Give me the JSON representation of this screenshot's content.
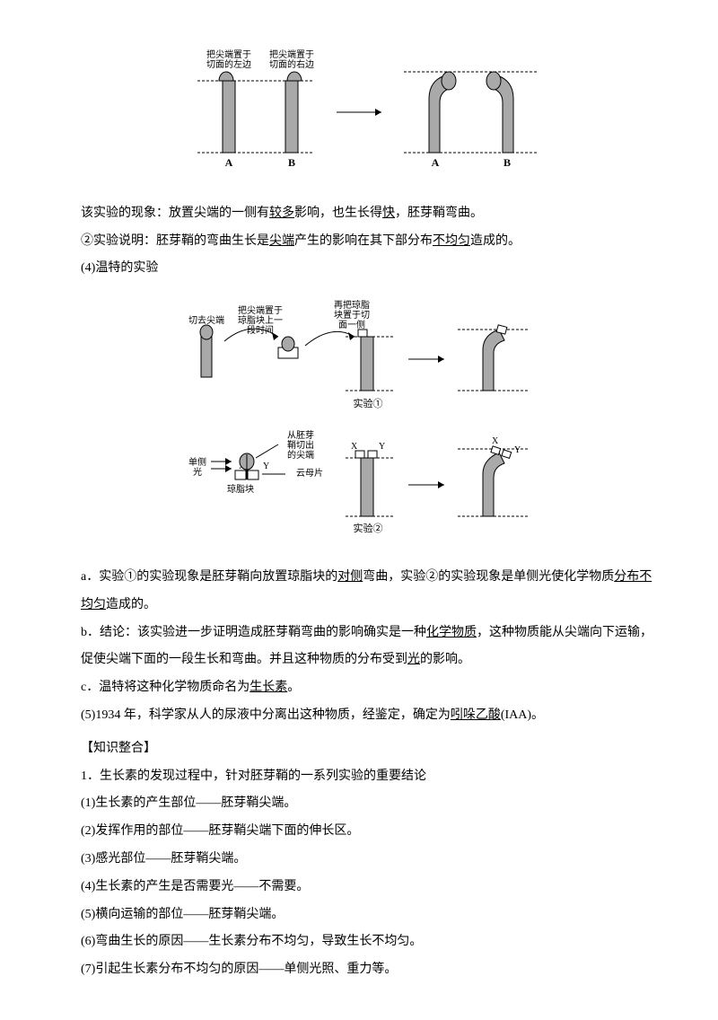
{
  "diagram1": {
    "label_left": "把尖端置于\n切面的左边",
    "label_right": "把尖端置于\n切面的右边",
    "A": "A",
    "B": "B",
    "colors": {
      "fill": "#a9a9a9",
      "stroke": "#000000",
      "bg": "#ffffff"
    }
  },
  "p1_a": "该实验的现象：放置尖端的一侧有",
  "p1_u1": "较多",
  "p1_b": "影响，也生长得",
  "p1_u2": "快",
  "p1_c": "，胚芽鞘弯曲。",
  "p2_a": "②实验说明：胚芽鞘的弯曲生长是",
  "p2_u1": "尖端",
  "p2_b": "产生的影响在其下部分布",
  "p2_u2": "不均匀",
  "p2_c": "造成的。",
  "p3": "(4)温特的实验",
  "diagram2": {
    "t_cut": "切去尖端",
    "t_place": "把尖端置于\n琼脂块上一\n段时间",
    "t_reput": "再把琼脂\n块置于切\n面一侧",
    "exp1": "实验①",
    "t_single": "单侧\n光",
    "t_agar": "琼脂块",
    "t_mica": "云母片",
    "t_from": "从胚芽\n鞘切出\n的尖端",
    "X": "X",
    "Y": "Y",
    "exp2": "实验②"
  },
  "p4_a": "a．实验①的实验现象是胚芽鞘向放置琼脂块的",
  "p4_u1": "对侧",
  "p4_b": "弯曲，实验②的实验现象是单侧光使化学物质",
  "p4_u2": "分布不均匀",
  "p4_c": "造成的。",
  "p5_a": "b．结论：该实验进一步证明造成胚芽鞘弯曲的影响确实是一种",
  "p5_u1": "化学物质",
  "p5_b": "，这种物质能从尖端向下运输，促使尖端下面的一段生长和弯曲。并且这种物质的分布受到",
  "p5_u2": "光",
  "p5_c": "的影响。",
  "p6_a": "c．温特将这种化学物质命名为",
  "p6_u1": "生长素",
  "p6_b": "。",
  "p7_a": "(5)1934 年，科学家从人的尿液中分离出这种物质，经鉴定，确定为",
  "p7_u1": "吲哚乙酸",
  "p7_b": "(IAA)。",
  "h1": "【知识整合】",
  "k1": "1．生长素的发现过程中，针对胚芽鞘的一系列实验的重要结论",
  "k2": "(1)生长素的产生部位——胚芽鞘尖端。",
  "k3": "(2)发挥作用的部位——胚芽鞘尖端下面的伸长区。",
  "k4": "(3)感光部位——胚芽鞘尖端。",
  "k5": "(4)生长素的产生是否需要光——不需要。",
  "k6": "(5)横向运输的部位——胚芽鞘尖端。",
  "k7": "(6)弯曲生长的原因——生长素分布不均匀，导致生长不均匀。",
  "k8": "(7)引起生长素分布不均匀的原因——单侧光照、重力等。"
}
